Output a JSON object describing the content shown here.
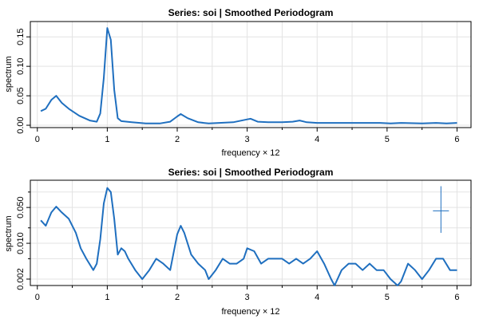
{
  "chart_data": [
    {
      "type": "line",
      "scale": "linear",
      "title": "Series: soi  |  Smoothed Periodogram",
      "xlabel": "frequency × 12",
      "ylabel": "spectrum",
      "xlim": [
        -0.1,
        6.2
      ],
      "ylim": [
        -0.004,
        0.176
      ],
      "xticks": [
        0,
        1,
        2,
        3,
        4,
        5,
        6
      ],
      "xtick_labels": [
        "0",
        "1",
        "2",
        "3",
        "4",
        "5",
        "6"
      ],
      "xminor": [
        0.5,
        1.5,
        2.5,
        3.5,
        4.5,
        5.5
      ],
      "yticks": [
        0.0,
        0.05,
        0.1,
        0.15
      ],
      "ytick_labels": [
        "0.00",
        "0.05",
        "0.10",
        "0.15"
      ],
      "grid": true,
      "series": [
        {
          "name": "soi",
          "color": "#1f6fbf",
          "x": [
            0.05,
            0.12,
            0.2,
            0.27,
            0.35,
            0.45,
            0.6,
            0.75,
            0.85,
            0.9,
            0.95,
            1.0,
            1.05,
            1.1,
            1.15,
            1.2,
            1.35,
            1.55,
            1.75,
            1.9,
            2.0,
            2.05,
            2.15,
            2.3,
            2.45,
            2.6,
            2.8,
            3.0,
            3.05,
            3.15,
            3.3,
            3.5,
            3.65,
            3.75,
            3.85,
            4.0,
            4.3,
            4.6,
            4.9,
            5.05,
            5.2,
            5.5,
            5.7,
            5.85,
            6.0
          ],
          "values": [
            0.024,
            0.028,
            0.043,
            0.05,
            0.038,
            0.028,
            0.016,
            0.008,
            0.006,
            0.02,
            0.08,
            0.165,
            0.145,
            0.06,
            0.012,
            0.007,
            0.005,
            0.003,
            0.003,
            0.006,
            0.015,
            0.019,
            0.012,
            0.005,
            0.003,
            0.004,
            0.005,
            0.01,
            0.011,
            0.006,
            0.005,
            0.005,
            0.006,
            0.008,
            0.005,
            0.004,
            0.004,
            0.004,
            0.004,
            0.003,
            0.004,
            0.003,
            0.004,
            0.003,
            0.004
          ]
        }
      ]
    },
    {
      "type": "line",
      "scale": "log",
      "title": "Series: soi  |  Smoothed Periodogram",
      "xlabel": "frequency × 12",
      "ylabel": "spectrum",
      "xlim": [
        -0.1,
        6.2
      ],
      "ylim": [
        0.0015,
        0.17
      ],
      "xticks": [
        0,
        1,
        2,
        3,
        4,
        5,
        6
      ],
      "xtick_labels": [
        "0",
        "1",
        "2",
        "3",
        "4",
        "5",
        "6"
      ],
      "xminor": [
        0.5,
        1.5,
        2.5,
        3.5,
        4.5,
        5.5
      ],
      "yticks": [
        0.002,
        0.01,
        0.05
      ],
      "ytick_labels": [
        "0.002",
        "0.010",
        "0.050"
      ],
      "yminor": [
        0.005,
        0.02,
        0.1
      ],
      "grid": true,
      "ci_bar": {
        "x": 5.77,
        "low": 0.016,
        "high": 0.13,
        "center": 0.043
      },
      "series": [
        {
          "name": "soi",
          "color": "#1f6fbf",
          "x": [
            0.05,
            0.12,
            0.2,
            0.27,
            0.35,
            0.45,
            0.55,
            0.62,
            0.7,
            0.8,
            0.85,
            0.9,
            0.95,
            1.0,
            1.05,
            1.1,
            1.15,
            1.2,
            1.25,
            1.3,
            1.4,
            1.5,
            1.6,
            1.7,
            1.8,
            1.9,
            2.0,
            2.05,
            2.1,
            2.2,
            2.3,
            2.4,
            2.45,
            2.55,
            2.65,
            2.75,
            2.85,
            2.95,
            3.0,
            3.1,
            3.2,
            3.3,
            3.4,
            3.5,
            3.6,
            3.7,
            3.8,
            3.9,
            4.0,
            4.1,
            4.2,
            4.25,
            4.35,
            4.45,
            4.55,
            4.65,
            4.75,
            4.85,
            4.95,
            5.05,
            5.15,
            5.2,
            5.3,
            5.4,
            5.5,
            5.6,
            5.7,
            5.8,
            5.9,
            6.0
          ],
          "values": [
            0.028,
            0.022,
            0.04,
            0.052,
            0.04,
            0.03,
            0.016,
            0.008,
            0.005,
            0.003,
            0.004,
            0.012,
            0.06,
            0.12,
            0.1,
            0.03,
            0.006,
            0.008,
            0.007,
            0.005,
            0.003,
            0.002,
            0.003,
            0.005,
            0.004,
            0.003,
            0.015,
            0.022,
            0.016,
            0.006,
            0.004,
            0.003,
            0.002,
            0.003,
            0.005,
            0.004,
            0.004,
            0.005,
            0.008,
            0.007,
            0.004,
            0.005,
            0.005,
            0.005,
            0.004,
            0.005,
            0.004,
            0.005,
            0.007,
            0.004,
            0.002,
            0.0015,
            0.003,
            0.004,
            0.004,
            0.003,
            0.004,
            0.003,
            0.003,
            0.002,
            0.0015,
            0.0018,
            0.004,
            0.003,
            0.002,
            0.003,
            0.005,
            0.005,
            0.003,
            0.003
          ]
        }
      ]
    }
  ]
}
